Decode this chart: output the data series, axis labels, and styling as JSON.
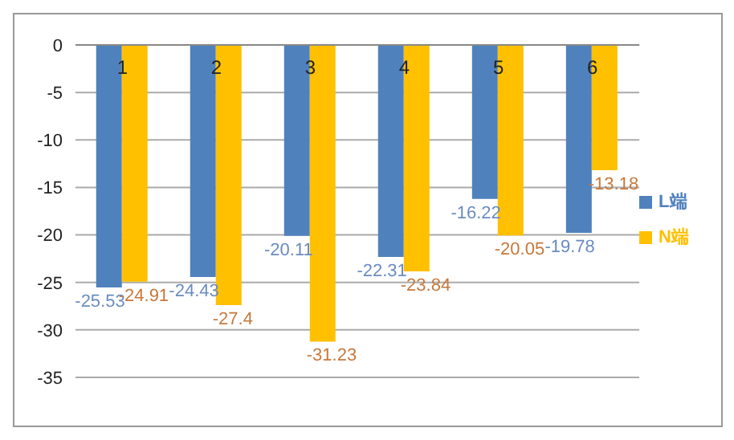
{
  "chart_data": {
    "type": "bar",
    "categories": [
      "1",
      "2",
      "3",
      "4",
      "5",
      "6"
    ],
    "series": [
      {
        "name": "L端",
        "color": "#4f81bd",
        "values": [
          -25.53,
          -24.43,
          -20.11,
          -22.31,
          -16.22,
          -19.78
        ]
      },
      {
        "name": "N端",
        "color": "#ffc000",
        "values": [
          -24.91,
          -27.4,
          -31.23,
          -23.84,
          -20.05,
          -13.18
        ]
      }
    ],
    "ylim": [
      -35,
      0
    ],
    "yticks": [
      -35,
      -30,
      -25,
      -20,
      -15,
      -10,
      -5,
      0
    ],
    "grid": "y",
    "legend": "right",
    "data_labels": true
  }
}
